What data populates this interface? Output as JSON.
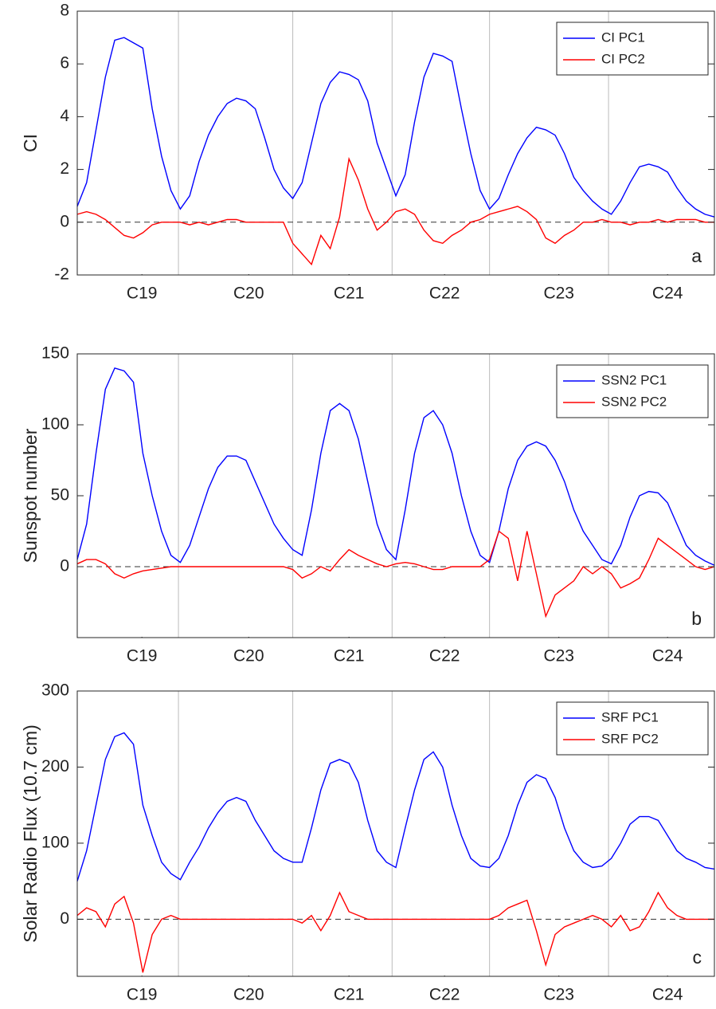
{
  "chart_data": [
    {
      "type": "line",
      "ylabel": "CI",
      "annotation": "a",
      "x": [
        0,
        1,
        2,
        3,
        4,
        5,
        6,
        7,
        8,
        9,
        10,
        11,
        12,
        13,
        14,
        15,
        16,
        17,
        18,
        19,
        20,
        21,
        22,
        23,
        24,
        25,
        26,
        27,
        28,
        29,
        30,
        31,
        32,
        33,
        34,
        35,
        36,
        37,
        38,
        39,
        40,
        41,
        42,
        43,
        44,
        45,
        46,
        47,
        48,
        49,
        50,
        51,
        52,
        53,
        54,
        55,
        56,
        57,
        58,
        59,
        60,
        61,
        62,
        63,
        64,
        65,
        66,
        67,
        68
      ],
      "xlim": [
        0,
        68
      ],
      "xticks": [
        {
          "value": 6.9,
          "label": "C19"
        },
        {
          "value": 18.3,
          "label": "C20"
        },
        {
          "value": 29,
          "label": "C21"
        },
        {
          "value": 39.2,
          "label": "C22"
        },
        {
          "value": 51.4,
          "label": "C23"
        },
        {
          "value": 63,
          "label": "C24"
        }
      ],
      "xgrid": [
        10.8,
        23,
        33.6,
        44,
        56.7
      ],
      "ylim": [
        -2,
        8
      ],
      "yticks": [
        -2,
        0,
        2,
        4,
        6,
        8
      ],
      "reference_line": 0,
      "legend": "upper right",
      "series": [
        {
          "name": "CI PC1",
          "color": "#0000ff",
          "values": [
            0.6,
            1.5,
            3.5,
            5.5,
            6.9,
            7.0,
            6.8,
            6.6,
            4.3,
            2.5,
            1.2,
            0.5,
            1.0,
            2.3,
            3.3,
            4.0,
            4.5,
            4.7,
            4.6,
            4.3,
            3.2,
            2.0,
            1.3,
            0.9,
            1.5,
            3.0,
            4.5,
            5.3,
            5.7,
            5.6,
            5.4,
            4.6,
            3.0,
            2.0,
            1.0,
            1.8,
            3.8,
            5.5,
            6.4,
            6.3,
            6.1,
            4.3,
            2.6,
            1.2,
            0.5,
            0.9,
            1.8,
            2.6,
            3.2,
            3.6,
            3.5,
            3.3,
            2.6,
            1.7,
            1.2,
            0.8,
            0.5,
            0.3,
            0.8,
            1.5,
            2.1,
            2.2,
            2.1,
            1.9,
            1.3,
            0.8,
            0.5,
            0.3,
            0.2
          ]
        },
        {
          "name": "CI PC2",
          "color": "#ff0000",
          "values": [
            0.3,
            0.4,
            0.3,
            0.1,
            -0.2,
            -0.5,
            -0.6,
            -0.4,
            -0.1,
            0.0,
            0.0,
            0.0,
            -0.1,
            0.0,
            -0.1,
            0.0,
            0.1,
            0.1,
            0.0,
            0.0,
            0.0,
            0.0,
            0.0,
            -0.8,
            -1.2,
            -1.6,
            -0.5,
            -1.0,
            0.2,
            2.4,
            1.6,
            0.5,
            -0.3,
            0.0,
            0.4,
            0.5,
            0.3,
            -0.3,
            -0.7,
            -0.8,
            -0.5,
            -0.3,
            0.0,
            0.1,
            0.3,
            0.4,
            0.5,
            0.6,
            0.4,
            0.1,
            -0.6,
            -0.8,
            -0.5,
            -0.3,
            0.0,
            0.0,
            0.1,
            0.0,
            0.0,
            -0.1,
            0.0,
            0.0,
            0.1,
            0.0,
            0.1,
            0.1,
            0.1,
            0.0,
            0.0
          ]
        }
      ]
    },
    {
      "type": "line",
      "ylabel": "Sunspot number",
      "annotation": "b",
      "x": [
        0,
        1,
        2,
        3,
        4,
        5,
        6,
        7,
        8,
        9,
        10,
        11,
        12,
        13,
        14,
        15,
        16,
        17,
        18,
        19,
        20,
        21,
        22,
        23,
        24,
        25,
        26,
        27,
        28,
        29,
        30,
        31,
        32,
        33,
        34,
        35,
        36,
        37,
        38,
        39,
        40,
        41,
        42,
        43,
        44,
        45,
        46,
        47,
        48,
        49,
        50,
        51,
        52,
        53,
        54,
        55,
        56,
        57,
        58,
        59,
        60,
        61,
        62,
        63,
        64,
        65,
        66,
        67,
        68
      ],
      "xlim": [
        0,
        68
      ],
      "xticks": [
        {
          "value": 6.9,
          "label": "C19"
        },
        {
          "value": 18.3,
          "label": "C20"
        },
        {
          "value": 29,
          "label": "C21"
        },
        {
          "value": 39.2,
          "label": "C22"
        },
        {
          "value": 51.4,
          "label": "C23"
        },
        {
          "value": 63,
          "label": "C24"
        }
      ],
      "xgrid": [
        10.8,
        23,
        33.6,
        44,
        56.7
      ],
      "ylim": [
        -50,
        150
      ],
      "yticks": [
        0,
        50,
        100,
        150
      ],
      "reference_line": 0,
      "legend": "upper right",
      "series": [
        {
          "name": "SSN2 PC1",
          "color": "#0000ff",
          "values": [
            5,
            30,
            80,
            125,
            140,
            138,
            130,
            80,
            50,
            25,
            8,
            3,
            15,
            35,
            55,
            70,
            78,
            78,
            75,
            60,
            45,
            30,
            20,
            12,
            8,
            40,
            80,
            110,
            115,
            110,
            90,
            60,
            30,
            12,
            5,
            40,
            80,
            105,
            110,
            100,
            80,
            50,
            25,
            8,
            3,
            25,
            55,
            75,
            85,
            88,
            85,
            75,
            60,
            40,
            25,
            15,
            5,
            2,
            15,
            35,
            50,
            53,
            52,
            45,
            30,
            15,
            8,
            4,
            1
          ]
        },
        {
          "name": "SSN2 PC2",
          "color": "#ff0000",
          "values": [
            2,
            5,
            5,
            2,
            -5,
            -8,
            -5,
            -3,
            -2,
            -1,
            0,
            0,
            0,
            0,
            0,
            0,
            0,
            0,
            0,
            0,
            0,
            0,
            0,
            -2,
            -8,
            -5,
            0,
            -3,
            5,
            12,
            8,
            5,
            2,
            0,
            2,
            3,
            2,
            0,
            -2,
            -2,
            0,
            0,
            0,
            0,
            5,
            25,
            20,
            -10,
            25,
            -5,
            -35,
            -20,
            -15,
            -10,
            0,
            -5,
            0,
            -5,
            -15,
            -12,
            -8,
            5,
            20,
            15,
            10,
            5,
            0,
            -2,
            0
          ]
        }
      ]
    },
    {
      "type": "line",
      "ylabel": "Solar Radio Flux (10.7 cm)",
      "annotation": "c",
      "x": [
        0,
        1,
        2,
        3,
        4,
        5,
        6,
        7,
        8,
        9,
        10,
        11,
        12,
        13,
        14,
        15,
        16,
        17,
        18,
        19,
        20,
        21,
        22,
        23,
        24,
        25,
        26,
        27,
        28,
        29,
        30,
        31,
        32,
        33,
        34,
        35,
        36,
        37,
        38,
        39,
        40,
        41,
        42,
        43,
        44,
        45,
        46,
        47,
        48,
        49,
        50,
        51,
        52,
        53,
        54,
        55,
        56,
        57,
        58,
        59,
        60,
        61,
        62,
        63,
        64,
        65,
        66,
        67,
        68
      ],
      "xlim": [
        0,
        68
      ],
      "xticks": [
        {
          "value": 6.9,
          "label": "C19"
        },
        {
          "value": 18.3,
          "label": "C20"
        },
        {
          "value": 29,
          "label": "C21"
        },
        {
          "value": 39.2,
          "label": "C22"
        },
        {
          "value": 51.4,
          "label": "C23"
        },
        {
          "value": 63,
          "label": "C24"
        }
      ],
      "xgrid": [
        10.8,
        23,
        33.6,
        44,
        56.7
      ],
      "ylim": [
        -75,
        300
      ],
      "yticks": [
        0,
        100,
        200,
        300
      ],
      "reference_line": 0,
      "legend": "upper right",
      "series": [
        {
          "name": "SRF PC1",
          "color": "#0000ff",
          "values": [
            50,
            90,
            150,
            210,
            240,
            245,
            230,
            150,
            110,
            75,
            60,
            52,
            75,
            95,
            120,
            140,
            155,
            160,
            155,
            130,
            110,
            90,
            80,
            75,
            75,
            120,
            170,
            205,
            210,
            205,
            180,
            130,
            90,
            75,
            68,
            120,
            170,
            210,
            220,
            200,
            150,
            110,
            80,
            70,
            68,
            80,
            110,
            150,
            180,
            190,
            185,
            160,
            120,
            90,
            75,
            68,
            70,
            80,
            100,
            125,
            135,
            135,
            130,
            110,
            90,
            80,
            75,
            68,
            66
          ]
        },
        {
          "name": "SRF PC2",
          "color": "#ff0000",
          "values": [
            5,
            15,
            10,
            -10,
            20,
            30,
            -5,
            -70,
            -20,
            0,
            5,
            0,
            0,
            0,
            0,
            0,
            0,
            0,
            0,
            0,
            0,
            0,
            0,
            0,
            -5,
            5,
            -15,
            5,
            35,
            10,
            5,
            0,
            0,
            0,
            0,
            0,
            0,
            0,
            0,
            0,
            0,
            0,
            0,
            0,
            0,
            5,
            15,
            20,
            25,
            -15,
            -60,
            -20,
            -10,
            -5,
            0,
            5,
            0,
            -10,
            5,
            -15,
            -10,
            10,
            35,
            15,
            5,
            0,
            0,
            0,
            0
          ]
        }
      ]
    }
  ]
}
